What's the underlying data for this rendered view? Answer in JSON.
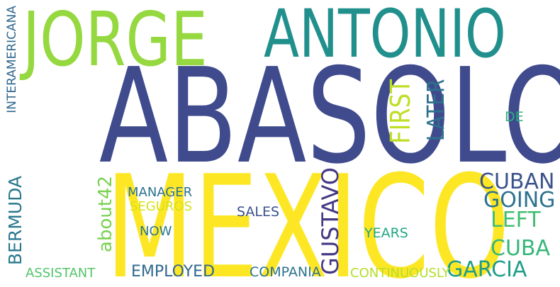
{
  "cloud": {
    "background": "#ffffff",
    "words": [
      {
        "key": "abasolo",
        "text": "ABASOLO",
        "color": "#3f4b8c",
        "orientation": "horizontal"
      },
      {
        "key": "mexico",
        "text": "MEXICO",
        "color": "#fde725",
        "orientation": "horizontal"
      },
      {
        "key": "jorge",
        "text": "JORGE",
        "color": "#95d840",
        "orientation": "horizontal"
      },
      {
        "key": "antonio",
        "text": "ANTONIO",
        "color": "#21908d",
        "orientation": "horizontal"
      },
      {
        "key": "first",
        "text": "FIRST",
        "color": "#bddf26",
        "orientation": "vertical"
      },
      {
        "key": "later",
        "text": "LATER",
        "color": "#2c728e",
        "orientation": "vertical"
      },
      {
        "key": "de",
        "text": "DE",
        "color": "#29af7f",
        "orientation": "horizontal"
      },
      {
        "key": "interamericana",
        "text": "INTERAMERICANA",
        "color": "#31688e",
        "orientation": "vertical"
      },
      {
        "key": "bermuda",
        "text": "BERMUDA",
        "color": "#2a788e",
        "orientation": "vertical"
      },
      {
        "key": "manager",
        "text": "MANAGER",
        "color": "#2c728e",
        "orientation": "horizontal"
      },
      {
        "key": "seguros",
        "text": "SEGUROS",
        "color": "#d5e21a",
        "orientation": "horizontal"
      },
      {
        "key": "about42",
        "text": "about42",
        "color": "#7ad151",
        "orientation": "vertical"
      },
      {
        "key": "sales",
        "text": "SALES",
        "color": "#3b528b",
        "orientation": "horizontal"
      },
      {
        "key": "now",
        "text": "NOW",
        "color": "#2a788e",
        "orientation": "horizontal"
      },
      {
        "key": "gustavo",
        "text": "GUSTAVO",
        "color": "#443983",
        "orientation": "vertical"
      },
      {
        "key": "cuban",
        "text": "CUBAN",
        "color": "#3b528b",
        "orientation": "horizontal"
      },
      {
        "key": "going",
        "text": "GOING",
        "color": "#2c728e",
        "orientation": "horizontal"
      },
      {
        "key": "left",
        "text": "LEFT",
        "color": "#42be71",
        "orientation": "horizontal"
      },
      {
        "key": "years",
        "text": "YEARS",
        "color": "#22a884",
        "orientation": "horizontal"
      },
      {
        "key": "cuba",
        "text": "CUBA",
        "color": "#35b779",
        "orientation": "horizontal"
      },
      {
        "key": "garcia",
        "text": "GARCIA",
        "color": "#1f9e89",
        "orientation": "horizontal"
      },
      {
        "key": "assistant",
        "text": "ASSISTANT",
        "color": "#52c569",
        "orientation": "horizontal"
      },
      {
        "key": "employed",
        "text": "EMPLOYED",
        "color": "#31688e",
        "orientation": "horizontal"
      },
      {
        "key": "compania",
        "text": "COMPANIA",
        "color": "#2c728e",
        "orientation": "horizontal"
      },
      {
        "key": "continuously",
        "text": "CONTINUOUSLY",
        "color": "#b5de2b",
        "orientation": "horizontal"
      }
    ]
  }
}
